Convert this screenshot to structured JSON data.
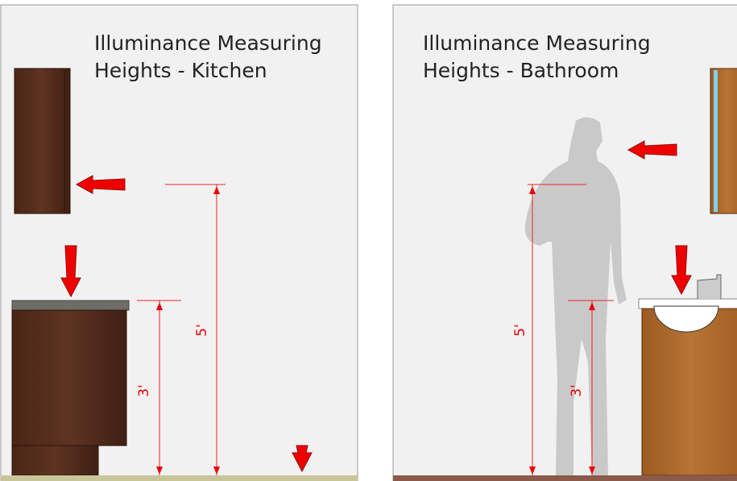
{
  "panels": [
    {
      "title": [
        "Illuminance Measuring",
        "Heights - Kitchen"
      ],
      "labels": [
        "3'",
        "5'"
      ]
    },
    {
      "title": [
        "Illuminance Measuring",
        "Heights - Bathroom"
      ],
      "labels": [
        "5'",
        "3'"
      ]
    }
  ]
}
